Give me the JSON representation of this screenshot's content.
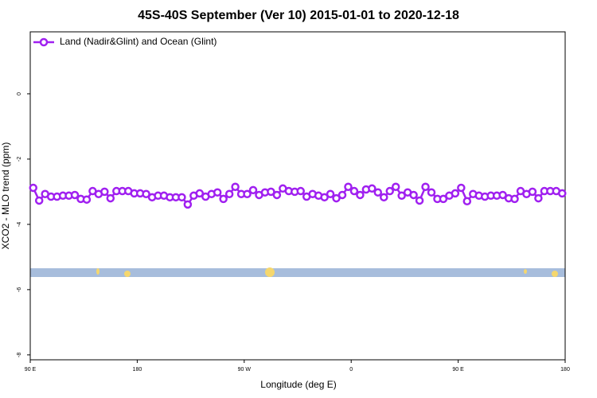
{
  "chart_data": {
    "type": "line",
    "title": "45S-40S September (Ver 10)   2015-01-01 to 2020-12-18",
    "x_label": "Longitude (deg E)",
    "y_label": "XCO2 - MLO trend (ppm)",
    "xlim": [
      90,
      540
    ],
    "ylim": [
      -8.15,
      1.9
    ],
    "xticks": [
      {
        "value": 90,
        "label": "90 E"
      },
      180,
      {
        "value": 270,
        "label": "90 W"
      },
      {
        "value": 360,
        "label": "0"
      },
      {
        "value": 450,
        "label": "90 E"
      },
      {
        "value": 540,
        "label": "180"
      }
    ],
    "yticks": [
      0,
      -2,
      -4,
      -6,
      -8
    ],
    "legend": "top-left",
    "x": [
      92.5,
      97.5,
      102.5,
      107.5,
      112.5,
      117.5,
      122.5,
      127.5,
      132.5,
      137.5,
      142.5,
      147.5,
      152.5,
      157.5,
      162.5,
      167.5,
      172.5,
      177.5,
      182.5,
      187.5,
      192.5,
      197.5,
      202.5,
      207.5,
      212.5,
      217.5,
      222.5,
      227.5,
      232.5,
      237.5,
      242.5,
      247.5,
      252.5,
      257.5,
      262.5,
      267.5,
      272.5,
      277.5,
      282.5,
      287.5,
      292.5,
      297.5,
      302.5,
      307.5,
      312.5,
      317.5,
      322.5,
      327.5,
      332.5,
      337.5,
      342.5,
      347.5,
      352.5,
      357.5,
      362.5,
      367.5,
      372.5,
      377.5,
      382.5,
      387.5,
      392.5,
      397.5,
      402.5,
      407.5,
      412.5,
      417.5,
      422.5,
      427.5,
      432.5,
      437.5,
      442.5,
      447.5,
      452.5,
      457.5,
      462.5,
      467.5,
      472.5,
      477.5,
      482.5,
      487.5,
      492.5,
      497.5,
      502.5,
      507.5,
      512.5,
      517.5,
      522.5,
      527.5,
      532.5,
      537.5
    ],
    "series": [
      {
        "name": "Land (Nadir&Glint) and Ocean (Glint)",
        "color": "#a020f0",
        "values": [
          -2.88,
          -3.27,
          -3.07,
          -3.15,
          -3.15,
          -3.12,
          -3.12,
          -3.1,
          -3.22,
          -3.24,
          -2.98,
          -3.07,
          -3.0,
          -3.2,
          -2.98,
          -2.98,
          -2.98,
          -3.05,
          -3.05,
          -3.07,
          -3.17,
          -3.12,
          -3.12,
          -3.17,
          -3.17,
          -3.17,
          -3.39,
          -3.12,
          -3.05,
          -3.15,
          -3.07,
          -3.02,
          -3.22,
          -3.07,
          -2.85,
          -3.07,
          -3.07,
          -2.95,
          -3.1,
          -3.02,
          -3.0,
          -3.1,
          -2.9,
          -2.98,
          -3.0,
          -2.98,
          -3.15,
          -3.07,
          -3.12,
          -3.17,
          -3.07,
          -3.2,
          -3.1,
          -2.85,
          -2.98,
          -3.1,
          -2.93,
          -2.9,
          -3.02,
          -3.17,
          -2.98,
          -2.85,
          -3.12,
          -3.02,
          -3.1,
          -3.27,
          -2.85,
          -3.02,
          -3.22,
          -3.22,
          -3.12,
          -3.05,
          -2.88,
          -3.29,
          -3.07,
          -3.12,
          -3.15,
          -3.12,
          -3.12,
          -3.1,
          -3.2,
          -3.22,
          -2.98,
          -3.07,
          -3.0,
          -3.2,
          -2.98,
          -2.98,
          -2.98,
          -3.05
        ]
      }
    ]
  }
}
